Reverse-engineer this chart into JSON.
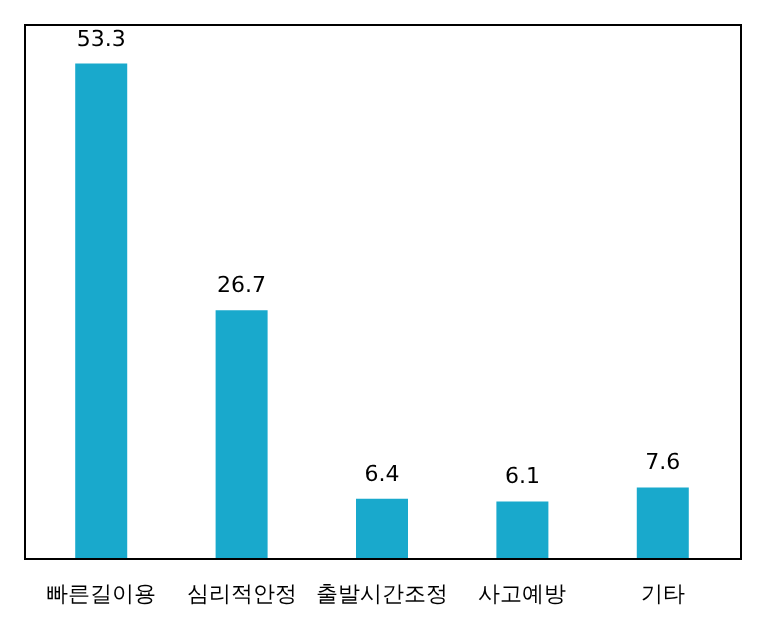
{
  "chart_data": {
    "type": "bar",
    "categories": [
      "빠른길이용",
      "심리적안정",
      "출발시간조정",
      "사고예방",
      "기타"
    ],
    "values": [
      53.3,
      26.7,
      6.4,
      6.1,
      7.6
    ],
    "color": "#19a9cc",
    "data_labels": true,
    "grid": false
  }
}
